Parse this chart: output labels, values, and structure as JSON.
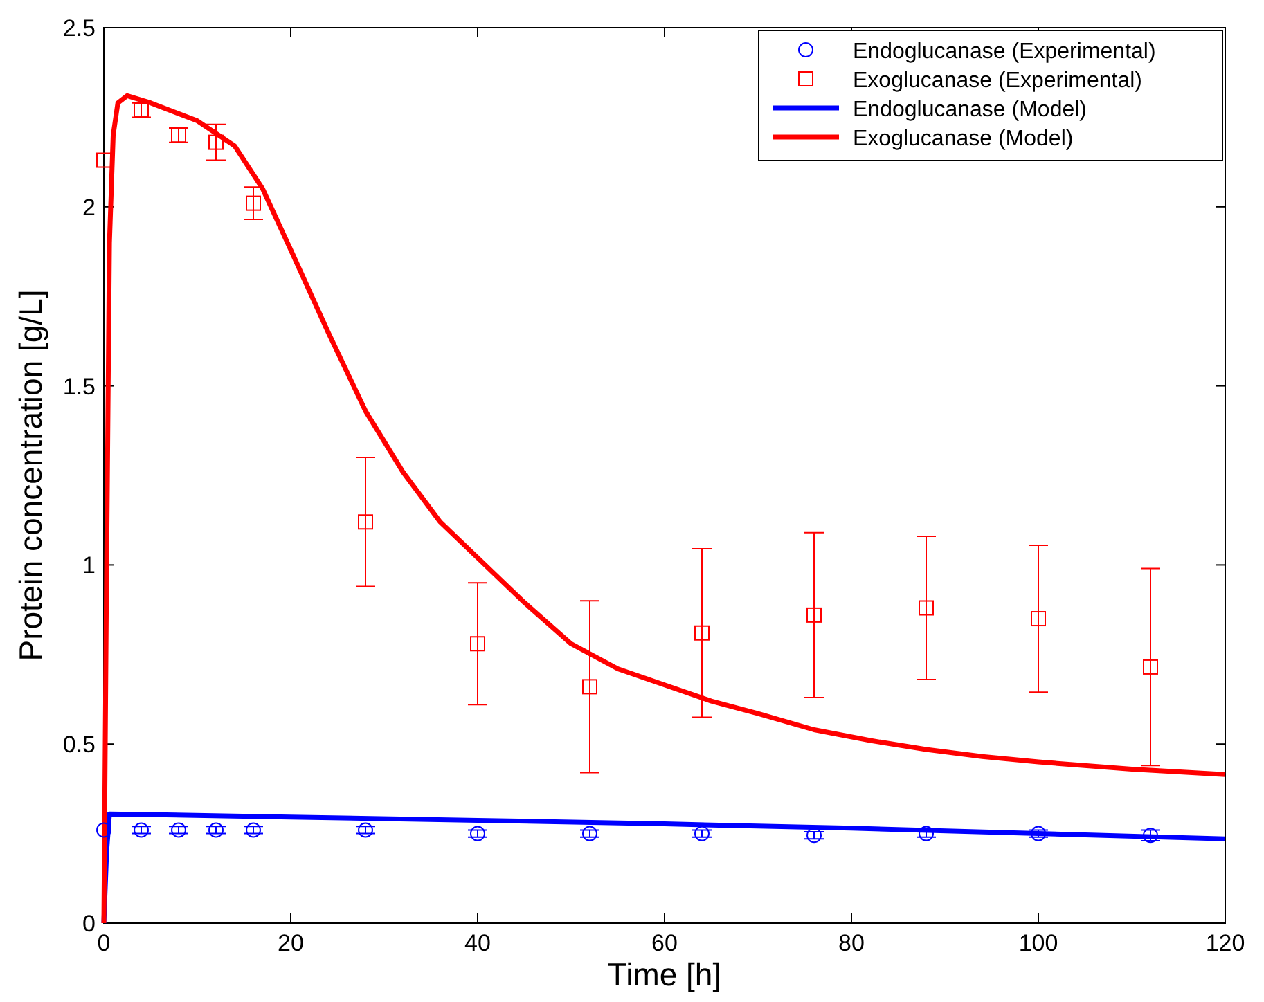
{
  "chart_data": {
    "type": "scatter",
    "xlabel": "Time [h]",
    "ylabel": "Protein concentration [g/L]",
    "xlim": [
      0,
      120
    ],
    "ylim": [
      0,
      2.5
    ],
    "xticks": [
      0,
      20,
      40,
      60,
      80,
      100,
      120
    ],
    "yticks": [
      0,
      0.5,
      1,
      1.5,
      2,
      2.5
    ],
    "grid": false,
    "legend": "top right",
    "series": [
      {
        "name": "Endoglucanase (Experimental)",
        "marker": "circle",
        "color": "#0000ff",
        "x": [
          0,
          4,
          8,
          12,
          16,
          28,
          40,
          52,
          64,
          76,
          88,
          100,
          112
        ],
        "values": [
          0.26,
          0.26,
          0.26,
          0.26,
          0.26,
          0.26,
          0.25,
          0.25,
          0.25,
          0.245,
          0.25,
          0.25,
          0.245
        ],
        "errors": [
          null,
          0.01,
          0.01,
          0.01,
          0.01,
          0.01,
          0.01,
          0.01,
          0.01,
          0.01,
          0.01,
          0.01,
          0.015
        ]
      },
      {
        "name": "Exoglucanase (Experimental)",
        "marker": "square",
        "color": "#ff0000",
        "x": [
          0,
          4,
          8,
          12,
          16,
          28,
          40,
          52,
          64,
          76,
          88,
          100,
          112
        ],
        "values": [
          2.13,
          2.27,
          2.2,
          2.18,
          2.01,
          1.12,
          0.78,
          0.66,
          0.81,
          0.86,
          0.88,
          0.85,
          0.715
        ],
        "errors": [
          null,
          0.02,
          0.02,
          0.05,
          0.045,
          0.18,
          0.17,
          0.24,
          0.235,
          0.23,
          0.2,
          0.205,
          0.275
        ]
      },
      {
        "name": "Endoglucanase (Model)",
        "type": "line",
        "marker": "none",
        "line_style": "solid",
        "color": "#0000ff",
        "x": [
          0,
          0.3,
          0.6,
          20,
          40,
          60,
          80,
          100,
          120
        ],
        "values": [
          0,
          0.2,
          0.305,
          0.296,
          0.287,
          0.277,
          0.265,
          0.25,
          0.235
        ]
      },
      {
        "name": "Exoglucanase (Model)",
        "type": "line",
        "marker": "none",
        "line_style": "solid",
        "color": "#ff0000",
        "x": [
          0,
          0.3,
          0.6,
          1,
          1.5,
          2.5,
          5,
          10,
          14,
          17,
          20,
          24,
          28,
          32,
          36,
          40,
          45,
          50,
          55,
          60,
          65,
          70,
          76,
          82,
          88,
          94,
          100,
          110,
          120
        ],
        "values": [
          0,
          1.0,
          1.9,
          2.2,
          2.29,
          2.31,
          2.29,
          2.24,
          2.17,
          2.05,
          1.88,
          1.65,
          1.43,
          1.26,
          1.12,
          1.02,
          0.895,
          0.78,
          0.71,
          0.665,
          0.62,
          0.585,
          0.54,
          0.51,
          0.485,
          0.465,
          0.45,
          0.43,
          0.415
        ]
      }
    ]
  }
}
